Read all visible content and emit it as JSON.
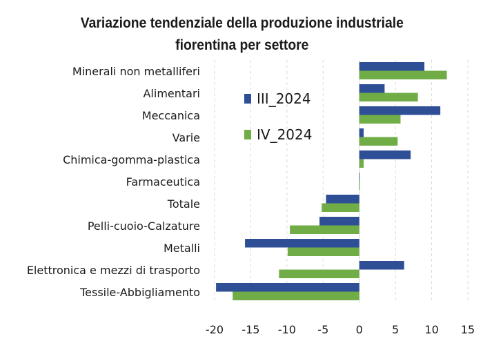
{
  "chart_data": {
    "type": "bar",
    "orientation": "horizontal",
    "title_lines": [
      "Variazione tendenziale della produzione industriale",
      "fiorentina per settore"
    ],
    "categories": [
      "Minerali non metalliferi",
      "Alimentari",
      "Meccanica",
      "Varie",
      "Chimica-gomma-plastica",
      "Farmaceutica",
      "Totale",
      "Pelli-cuoio-Calzature",
      "Metalli",
      "Elettronica e mezzi di trasporto",
      "Tessile-Abbigliamento"
    ],
    "series": [
      {
        "name": "III_2024",
        "color": "#2e4f96",
        "values": [
          9.0,
          3.5,
          11.2,
          0.6,
          7.1,
          0.0,
          -4.6,
          -5.5,
          -15.8,
          6.2,
          -19.8
        ]
      },
      {
        "name": "IV_2024",
        "color": "#70ad47",
        "values": [
          12.1,
          8.1,
          5.7,
          5.3,
          0.6,
          0.1,
          -5.2,
          -9.6,
          -9.9,
          -11.1,
          -17.5
        ]
      }
    ],
    "xlim": [
      -20,
      15
    ],
    "xticks": [
      "-20",
      "-15",
      "-10",
      "-5",
      "0",
      "5",
      "10",
      "15"
    ],
    "grid": "vertical dashed",
    "legend_position": "upper-center, inside plot"
  }
}
